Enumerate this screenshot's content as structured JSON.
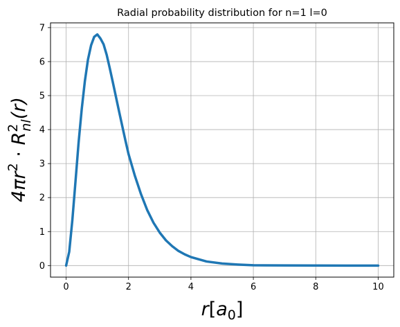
{
  "chart_data": {
    "type": "line",
    "title": "Radial probability distribution for n=1 l=0",
    "xlabel": {
      "r": "r",
      "open": "[",
      "a": "a",
      "sub": "0",
      "close": "]"
    },
    "ylabel": {
      "four_pi": "4π",
      "r": "r",
      "sup2": "2",
      "dot": " · ",
      "R": "R",
      "sup_r2": "2",
      "sub_nl": "nl",
      "arg": "(r)"
    },
    "xlim": [
      -0.5,
      10.5
    ],
    "ylim": [
      -0.34,
      7.14
    ],
    "xticks": [
      0,
      2,
      4,
      6,
      8,
      10
    ],
    "yticks": [
      0,
      1,
      2,
      3,
      4,
      5,
      6,
      7
    ],
    "grid": true,
    "line_color": "#1f77b4",
    "series": [
      {
        "x": [
          0,
          0.1,
          0.2,
          0.3,
          0.4,
          0.5,
          0.6,
          0.7,
          0.8,
          0.9,
          1.0,
          1.1,
          1.2,
          1.3,
          1.4,
          1.5,
          1.6,
          1.7,
          1.8,
          1.9,
          2.0,
          2.2,
          2.4,
          2.6,
          2.8,
          3.0,
          3.2,
          3.4,
          3.6,
          3.8,
          4.0,
          4.5,
          5.0,
          5.5,
          6.0,
          7.0,
          8.0,
          9.0,
          10.0
        ],
        "y": [
          0,
          0.41,
          1.34,
          2.47,
          3.62,
          4.6,
          5.42,
          6.06,
          6.48,
          6.73,
          6.8,
          6.68,
          6.51,
          6.2,
          5.8,
          5.38,
          4.95,
          4.52,
          4.1,
          3.68,
          3.28,
          2.65,
          2.1,
          1.63,
          1.26,
          0.97,
          0.74,
          0.57,
          0.43,
          0.33,
          0.25,
          0.12,
          0.06,
          0.03,
          0.01,
          0.003,
          0.001,
          0.0,
          0.0
        ]
      }
    ]
  }
}
